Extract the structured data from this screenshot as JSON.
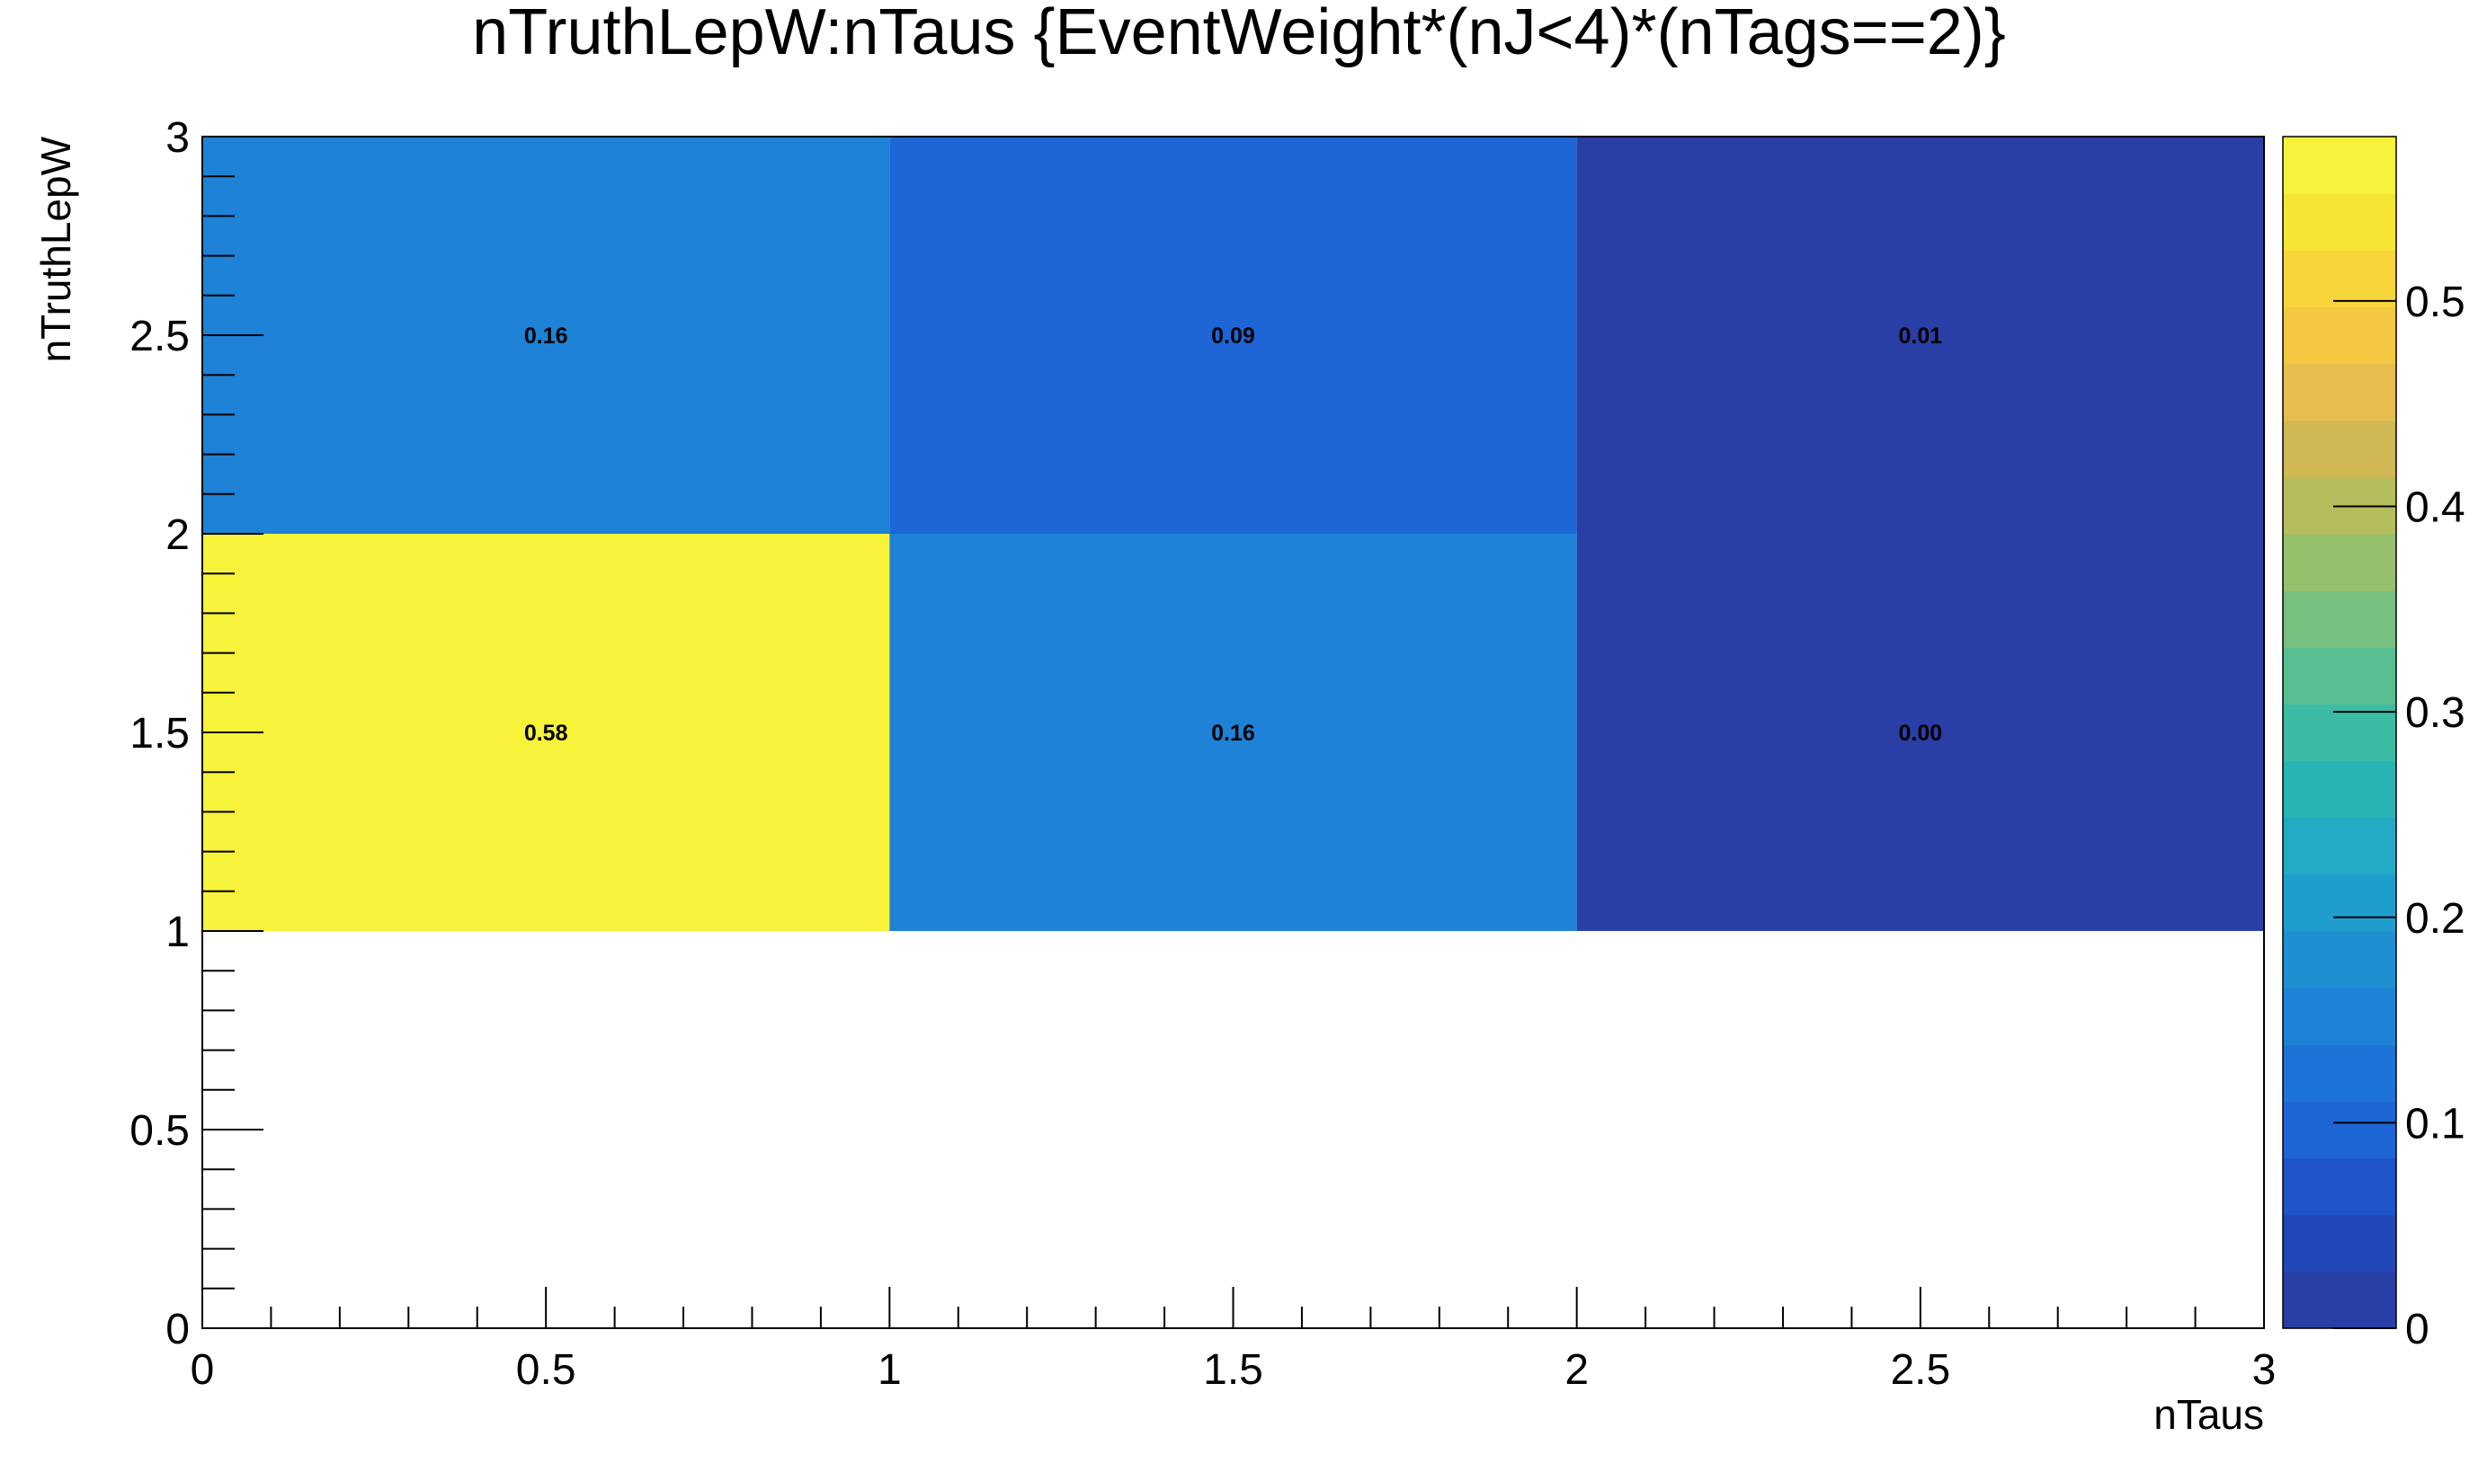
{
  "chart_data": {
    "type": "heatmap",
    "title": "nTruthLepW:nTaus {EventWeight*(nJ<4)*(nTags==2)}",
    "xlabel": "nTaus",
    "ylabel": "nTruthLepW",
    "xlim": [
      0,
      3
    ],
    "ylim": [
      0,
      3
    ],
    "x_ticks": [
      "0",
      "0.5",
      "1",
      "1.5",
      "2",
      "2.5",
      "3"
    ],
    "y_ticks": [
      "0",
      "0.5",
      "1",
      "1.5",
      "2",
      "2.5",
      "3"
    ],
    "colorbar": {
      "range": [
        0,
        0.58
      ],
      "ticks": [
        "0",
        "0.1",
        "0.2",
        "0.3",
        "0.4",
        "0.5"
      ]
    },
    "cells": [
      {
        "x_range": [
          0,
          1
        ],
        "y_range": [
          2,
          3
        ],
        "value": 0.16,
        "label": "0.16"
      },
      {
        "x_range": [
          1,
          2
        ],
        "y_range": [
          2,
          3
        ],
        "value": 0.09,
        "label": "0.09"
      },
      {
        "x_range": [
          2,
          3
        ],
        "y_range": [
          2,
          3
        ],
        "value": 0.01,
        "label": "0.01"
      },
      {
        "x_range": [
          0,
          1
        ],
        "y_range": [
          1,
          2
        ],
        "value": 0.58,
        "label": "0.58"
      },
      {
        "x_range": [
          1,
          2
        ],
        "y_range": [
          1,
          2
        ],
        "value": 0.16,
        "label": "0.16"
      },
      {
        "x_range": [
          2,
          3
        ],
        "y_range": [
          1,
          2
        ],
        "value": 0.0,
        "label": "0.00"
      }
    ],
    "palette": [
      "#2a3fa6",
      "#2447b8",
      "#1f55c8",
      "#1e65d6",
      "#1d74d8",
      "#1e82d6",
      "#1e90d2",
      "#1f9ecd",
      "#22aac4",
      "#28b4b5",
      "#3bbba4",
      "#57bf92",
      "#77c07f",
      "#97c06c",
      "#b6bd5c",
      "#d0b855",
      "#e6be4e",
      "#f5c842",
      "#f8d53a",
      "#f7e535",
      "#f6f33a"
    ]
  }
}
